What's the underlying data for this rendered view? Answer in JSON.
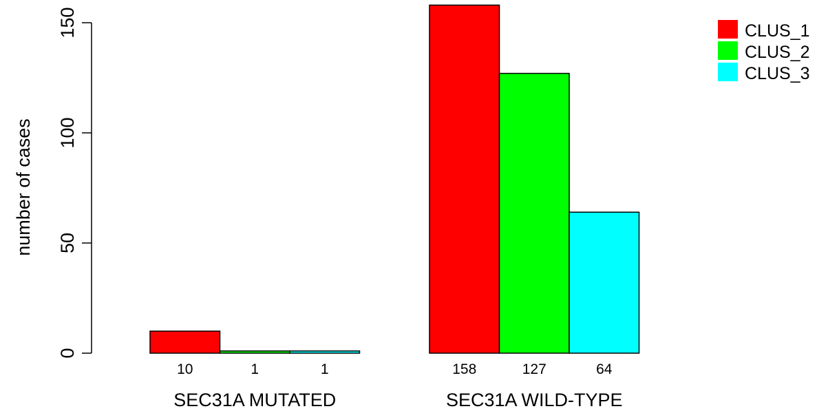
{
  "chart_data": {
    "type": "bar",
    "title": "",
    "xlabel": "",
    "ylabel": "number of cases",
    "ylim": [
      0,
      158
    ],
    "yticks": [
      0,
      50,
      100,
      150
    ],
    "groups": [
      "SEC31A MUTATED",
      "SEC31A WILD-TYPE"
    ],
    "series": [
      {
        "name": "CLUS_1",
        "color": "#ff0000",
        "values": [
          10,
          158
        ]
      },
      {
        "name": "CLUS_2",
        "color": "#00ff00",
        "values": [
          1,
          127
        ]
      },
      {
        "name": "CLUS_3",
        "color": "#00ffff",
        "values": [
          1,
          64
        ]
      }
    ],
    "bar_labels": [
      [
        "10",
        "1",
        "1"
      ],
      [
        "158",
        "127",
        "64"
      ]
    ],
    "legend_position": "top-right",
    "grid": false
  }
}
